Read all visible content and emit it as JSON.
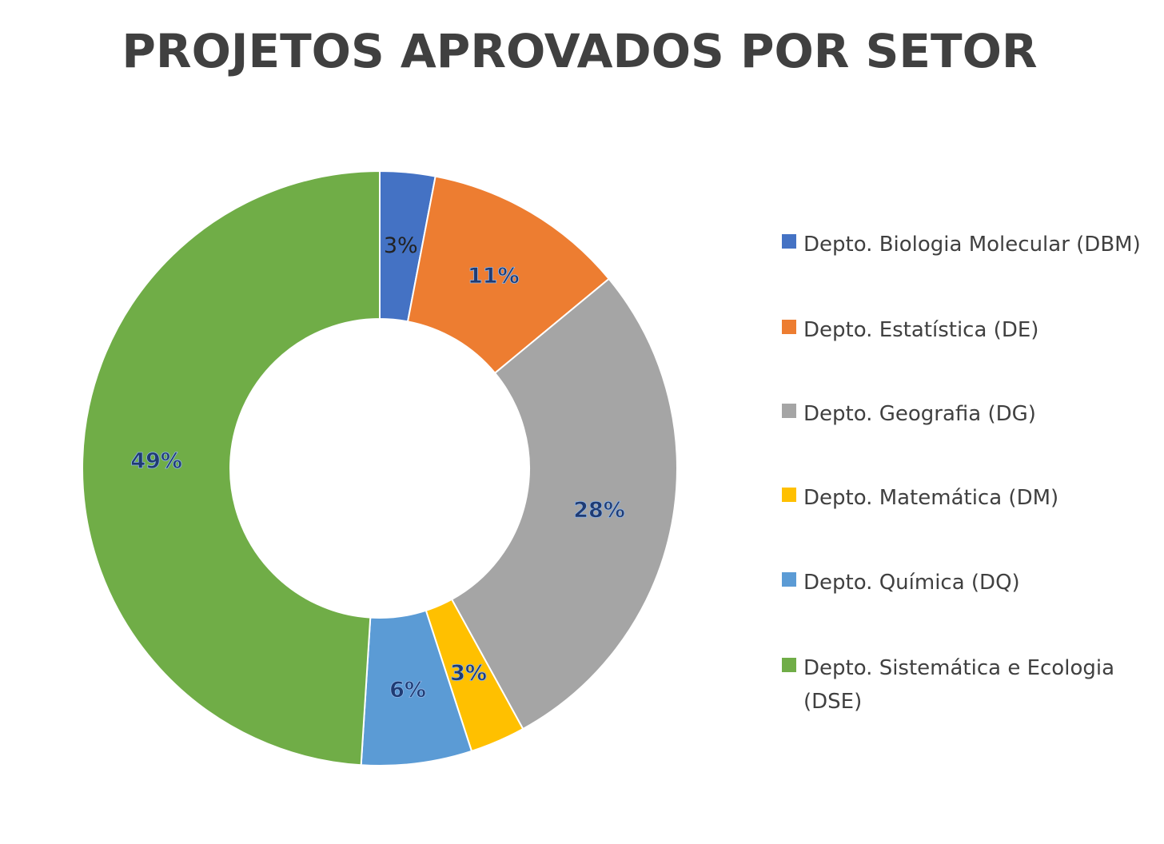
{
  "chart_data": {
    "type": "pie",
    "donut": true,
    "title": "PROJETOS APROVADOS POR SETOR",
    "series": [
      {
        "name": "",
        "values": [
          3,
          11,
          28,
          3,
          6,
          49
        ]
      }
    ],
    "categories": [
      "Depto. Biologia Molecular (DBM)",
      "Depto. Estatística (DE)",
      "Depto. Geografia (DG)",
      "Depto. Matemática (DM)",
      "Depto. Química (DQ)",
      "Depto. Sistemática e Ecologia (DSE)"
    ],
    "data_labels": [
      "3%",
      "11%",
      "28%",
      "3%",
      "6%",
      "49%"
    ],
    "colors": [
      "#4472c4",
      "#ed7d31",
      "#a5a5a5",
      "#ffc000",
      "#5b9bd5",
      "#70ad47"
    ],
    "legend_position": "right"
  }
}
